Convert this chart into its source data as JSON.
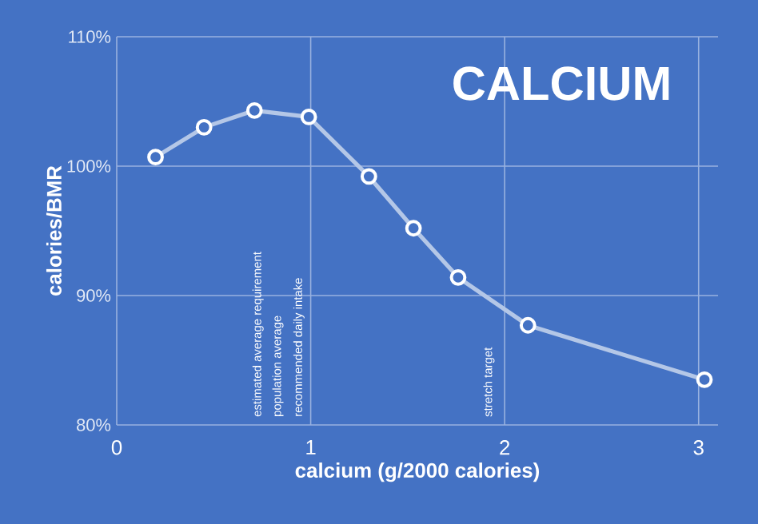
{
  "chart_data": {
    "type": "line",
    "title": "CALCIUM",
    "xlabel": "calcium (g/2000 calories)",
    "ylabel": "calories/BMR",
    "x": [
      0.2,
      0.45,
      0.71,
      0.99,
      1.3,
      1.53,
      1.76,
      2.12,
      3.03
    ],
    "series": [
      {
        "color": "#b4c7e7",
        "values": [
          100.7,
          103.0,
          104.3,
          103.8,
          99.2,
          95.2,
          91.4,
          87.7,
          83.5
        ]
      }
    ],
    "xlim": [
      0,
      3.1
    ],
    "ylim": [
      80,
      110
    ],
    "xticks": [
      0,
      1,
      2,
      3
    ],
    "yticks": [
      {
        "value": 80,
        "label": "80%"
      },
      {
        "value": 90,
        "label": "90%"
      },
      {
        "value": 100,
        "label": "100%"
      },
      {
        "value": 110,
        "label": "110%"
      }
    ],
    "grid": true,
    "marker": "circle",
    "line_style": "solid",
    "annotations": [
      "estimated average requirement",
      "population average",
      "recommended daily intake",
      "stretch target"
    ]
  }
}
